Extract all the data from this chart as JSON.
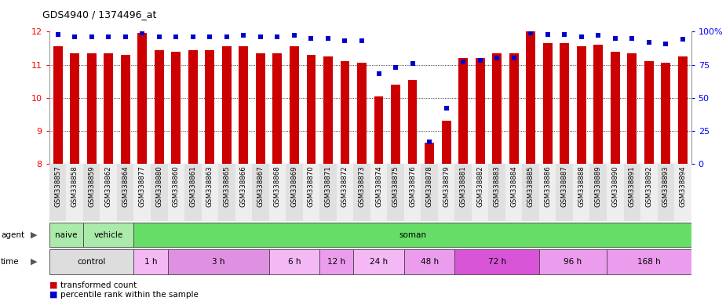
{
  "title": "GDS4940 / 1374496_at",
  "samples": [
    "GSM338857",
    "GSM338858",
    "GSM338859",
    "GSM338862",
    "GSM338864",
    "GSM338877",
    "GSM338880",
    "GSM338860",
    "GSM338861",
    "GSM338863",
    "GSM338865",
    "GSM338866",
    "GSM338867",
    "GSM338868",
    "GSM338869",
    "GSM338870",
    "GSM338871",
    "GSM338872",
    "GSM338873",
    "GSM338874",
    "GSM338875",
    "GSM338876",
    "GSM338878",
    "GSM338879",
    "GSM338881",
    "GSM338882",
    "GSM338883",
    "GSM338884",
    "GSM338885",
    "GSM338886",
    "GSM338887",
    "GSM338888",
    "GSM338889",
    "GSM338890",
    "GSM338891",
    "GSM338892",
    "GSM338893",
    "GSM338894"
  ],
  "bar_values": [
    11.55,
    11.35,
    11.35,
    11.35,
    11.3,
    11.95,
    11.45,
    11.4,
    11.45,
    11.45,
    11.55,
    11.55,
    11.35,
    11.35,
    11.55,
    11.3,
    11.25,
    11.1,
    11.05,
    10.05,
    10.4,
    10.55,
    8.65,
    9.3,
    11.2,
    11.2,
    11.35,
    11.35,
    12.0,
    11.65,
    11.65,
    11.55,
    11.6,
    11.4,
    11.35,
    11.1,
    11.05,
    11.25
  ],
  "percentile_values": [
    98,
    96,
    96,
    96,
    96,
    99,
    96,
    96,
    96,
    96,
    96,
    97,
    96,
    96,
    97,
    95,
    95,
    93,
    93,
    68,
    73,
    76,
    17,
    42,
    77,
    78,
    80,
    80,
    99,
    98,
    98,
    96,
    97,
    95,
    95,
    92,
    91,
    94
  ],
  "ymin": 8,
  "ymax": 12,
  "yticks_left": [
    8,
    9,
    10,
    11,
    12
  ],
  "yticks_right_vals": [
    0,
    25,
    50,
    75,
    100
  ],
  "yticks_right_labels": [
    "0",
    "25",
    "50",
    "75",
    "100%"
  ],
  "bar_color": "#cc0000",
  "dot_color": "#0000cc",
  "agent_groups": [
    {
      "label": "naive",
      "start": 0,
      "end": 2,
      "color": "#aaeaaa"
    },
    {
      "label": "vehicle",
      "start": 2,
      "end": 5,
      "color": "#aaeaaa"
    },
    {
      "label": "soman",
      "start": 5,
      "end": 38,
      "color": "#66dd66"
    }
  ],
  "time_groups": [
    {
      "label": "control",
      "start": 0,
      "end": 5,
      "color": "#dddddd"
    },
    {
      "label": "1 h",
      "start": 5,
      "end": 7,
      "color": "#f4b8f4"
    },
    {
      "label": "3 h",
      "start": 7,
      "end": 13,
      "color": "#e090e0"
    },
    {
      "label": "6 h",
      "start": 13,
      "end": 16,
      "color": "#f4b8f4"
    },
    {
      "label": "12 h",
      "start": 16,
      "end": 18,
      "color": "#ec9cec"
    },
    {
      "label": "24 h",
      "start": 18,
      "end": 21,
      "color": "#f4b8f4"
    },
    {
      "label": "48 h",
      "start": 21,
      "end": 24,
      "color": "#ec9cec"
    },
    {
      "label": "72 h",
      "start": 24,
      "end": 29,
      "color": "#d855d8"
    },
    {
      "label": "96 h",
      "start": 29,
      "end": 33,
      "color": "#ec9cec"
    },
    {
      "label": "168 h",
      "start": 33,
      "end": 38,
      "color": "#ec9cec"
    }
  ]
}
